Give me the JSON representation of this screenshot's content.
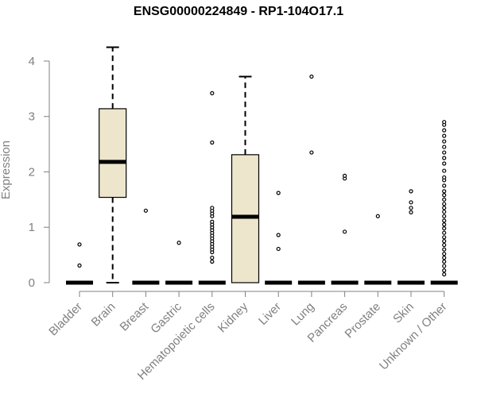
{
  "chart_data": {
    "type": "box",
    "title": "ENSG00000224849 - RP1-104O17.1",
    "xlabel": "",
    "ylabel": "Expression",
    "ylim": [
      0,
      4.3
    ],
    "yticks": [
      0,
      1,
      2,
      3,
      4
    ],
    "categories": [
      "Bladder",
      "Brain",
      "Breast",
      "Gastric",
      "Hematopoietic cells",
      "Kidney",
      "Liver",
      "Lung",
      "Pancreas",
      "Prostate",
      "Skin",
      "Unknown / Other"
    ],
    "boxes": [
      {
        "category": "Bladder",
        "min": 0,
        "q1": 0,
        "median": 0,
        "q3": 0,
        "max": 0,
        "outliers": [
          0.31,
          0.69
        ]
      },
      {
        "category": "Brain",
        "min": 0,
        "q1": 1.54,
        "median": 2.18,
        "q3": 3.14,
        "max": 4.25,
        "outliers": []
      },
      {
        "category": "Breast",
        "min": 0,
        "q1": 0,
        "median": 0,
        "q3": 0,
        "max": 0,
        "outliers": [
          1.3
        ]
      },
      {
        "category": "Gastric",
        "min": 0,
        "q1": 0,
        "median": 0,
        "q3": 0,
        "max": 0,
        "outliers": [
          0.72
        ]
      },
      {
        "category": "Hematopoietic cells",
        "min": 0,
        "q1": 0,
        "median": 0,
        "q3": 0,
        "max": 0,
        "outliers": [
          0.38,
          0.45,
          0.55,
          0.6,
          0.65,
          0.7,
          0.75,
          0.8,
          0.85,
          0.9,
          0.95,
          1.0,
          1.05,
          1.1,
          1.2,
          1.25,
          1.3,
          1.35,
          2.53,
          3.42
        ]
      },
      {
        "category": "Kidney",
        "min": 0,
        "q1": 0,
        "median": 1.19,
        "q3": 2.31,
        "max": 3.72,
        "outliers": []
      },
      {
        "category": "Liver",
        "min": 0,
        "q1": 0,
        "median": 0,
        "q3": 0,
        "max": 0,
        "outliers": [
          0.61,
          0.86,
          1.62
        ]
      },
      {
        "category": "Lung",
        "min": 0,
        "q1": 0,
        "median": 0,
        "q3": 0,
        "max": 0,
        "outliers": [
          2.35,
          3.72
        ]
      },
      {
        "category": "Pancreas",
        "min": 0,
        "q1": 0,
        "median": 0,
        "q3": 0,
        "max": 0,
        "outliers": [
          0.92,
          1.88,
          1.93
        ]
      },
      {
        "category": "Prostate",
        "min": 0,
        "q1": 0,
        "median": 0,
        "q3": 0,
        "max": 0,
        "outliers": [
          1.2
        ]
      },
      {
        "category": "Skin",
        "min": 0,
        "q1": 0,
        "median": 0,
        "q3": 0,
        "max": 0,
        "outliers": [
          1.27,
          1.35,
          1.45,
          1.65
        ]
      },
      {
        "category": "Unknown / Other",
        "min": 0,
        "q1": 0,
        "median": 0,
        "q3": 0,
        "max": 0,
        "outliers": [
          0.15,
          0.22,
          0.3,
          0.38,
          0.45,
          0.52,
          0.6,
          0.68,
          0.75,
          0.82,
          0.9,
          0.98,
          1.05,
          1.12,
          1.2,
          1.28,
          1.35,
          1.42,
          1.5,
          1.58,
          1.65,
          1.75,
          1.85,
          1.9,
          2.02,
          2.15,
          2.25,
          2.35,
          2.45,
          2.55,
          2.65,
          2.75,
          2.85,
          2.9
        ]
      }
    ],
    "colors": {
      "box_fill": "#ede6cc",
      "box_stroke": "#000000",
      "axis_color": "#808080",
      "text_color": "#808080",
      "title_color": "#000000"
    }
  }
}
